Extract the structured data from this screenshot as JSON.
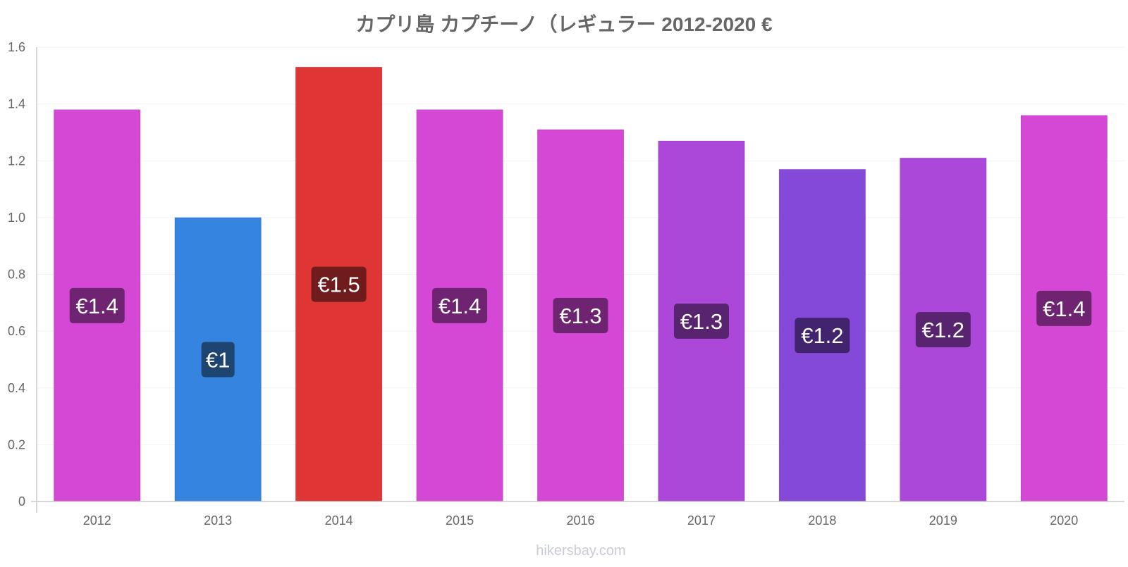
{
  "chart_data": {
    "type": "bar",
    "title": "カプリ島 カプチーノ（レギュラー 2012-2020 €",
    "xlabel": "",
    "ylabel": "",
    "categories": [
      "2012",
      "2013",
      "2014",
      "2015",
      "2016",
      "2017",
      "2018",
      "2019",
      "2020"
    ],
    "values": [
      1.38,
      1.0,
      1.53,
      1.38,
      1.31,
      1.27,
      1.17,
      1.21,
      1.36
    ],
    "data_labels": [
      "€1.4",
      "€1",
      "€1.5",
      "€1.4",
      "€1.3",
      "€1.3",
      "€1.2",
      "€1.2",
      "€1.4"
    ],
    "bar_colors": [
      "#d548d5",
      "#3584e0",
      "#e03535",
      "#d548d5",
      "#d548d5",
      "#ab48d9",
      "#8449d9",
      "#ab48d9",
      "#d548d5"
    ],
    "label_colors": [
      "#6e2470",
      "#1e4470",
      "#701c1c",
      "#6e2470",
      "#6e2470",
      "#582470",
      "#42246e",
      "#582470",
      "#6e2470"
    ],
    "ylim": [
      0,
      1.6
    ],
    "yticks": [
      0,
      0.2,
      0.4,
      0.6,
      0.8,
      1.0,
      1.2,
      1.4,
      1.6
    ],
    "ytick_labels": [
      "0",
      "0.2",
      "0.4",
      "0.6",
      "0.8",
      "1.0",
      "1.2",
      "1.4",
      "1.6"
    ],
    "grid": true,
    "legend": "none"
  },
  "watermark": "hikersbay.com"
}
